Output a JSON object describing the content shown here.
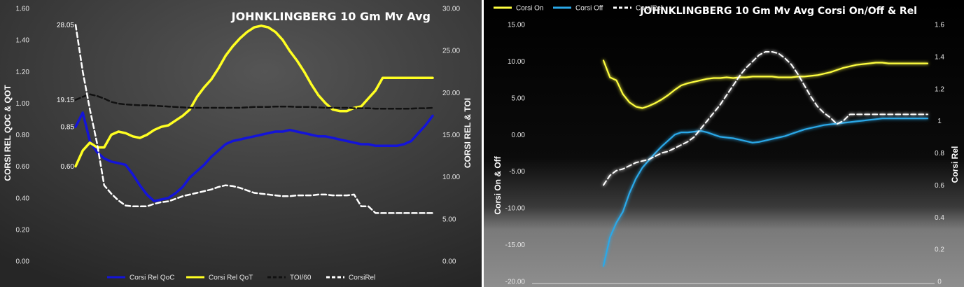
{
  "colors": {
    "qoc": "#1414d8",
    "qot": "#ffff22",
    "toi": "#111111",
    "corsirel": "#ffffff",
    "corsi_on": "#ffff40",
    "corsi_off": "#2aa8e8",
    "corsirel2": "#ffffff"
  },
  "chart_data": [
    {
      "type": "line",
      "title": "JOHNKLINGBERG 10 Gm Mv Avg",
      "ylabel_left": "CORSI REL QOC & QOT",
      "ylabel_right": "CORSI REL & TOI",
      "ylim_left": [
        0,
        1.6
      ],
      "ylim_right": [
        0,
        30
      ],
      "left_ticks": [
        "0.00",
        "0.20",
        "0.40",
        "0.60",
        "0.80",
        "1.00",
        "1.20",
        "1.40",
        "1.60"
      ],
      "right_ticks": [
        "0.00",
        "5.00",
        "10.00",
        "15.00",
        "20.00",
        "25.00",
        "30.00"
      ],
      "grid": false,
      "legend_position": "bottom",
      "data_labels": [
        "28.05",
        "19.15",
        "0.85",
        "0.60"
      ],
      "series": [
        {
          "name": "Corsi Rel QoC",
          "axis": "left",
          "style": "solid",
          "values": [
            0.85,
            0.94,
            0.76,
            0.69,
            0.65,
            0.63,
            0.62,
            0.61,
            0.55,
            0.48,
            0.42,
            0.38,
            0.39,
            0.4,
            0.43,
            0.47,
            0.53,
            0.57,
            0.61,
            0.66,
            0.7,
            0.74,
            0.76,
            0.77,
            0.78,
            0.79,
            0.8,
            0.81,
            0.82,
            0.82,
            0.83,
            0.82,
            0.81,
            0.8,
            0.79,
            0.79,
            0.78,
            0.77,
            0.76,
            0.75,
            0.74,
            0.74,
            0.73,
            0.73,
            0.73,
            0.73,
            0.74,
            0.76,
            0.81,
            0.86,
            0.92
          ]
        },
        {
          "name": "Corsi Rel QoT",
          "axis": "left",
          "style": "solid",
          "values": [
            0.6,
            0.7,
            0.75,
            0.72,
            0.72,
            0.8,
            0.82,
            0.81,
            0.79,
            0.78,
            0.8,
            0.83,
            0.85,
            0.86,
            0.89,
            0.92,
            0.96,
            1.04,
            1.1,
            1.15,
            1.22,
            1.3,
            1.36,
            1.41,
            1.45,
            1.48,
            1.49,
            1.48,
            1.45,
            1.4,
            1.33,
            1.27,
            1.2,
            1.12,
            1.05,
            1.0,
            0.96,
            0.95,
            0.95,
            0.97,
            0.98,
            1.03,
            1.08,
            1.16,
            1.16,
            1.16,
            1.16,
            1.16,
            1.16,
            1.16,
            1.16
          ]
        },
        {
          "name": "TOI/60",
          "axis": "right",
          "style": "dashed",
          "values": [
            19.15,
            19.5,
            19.8,
            19.6,
            19.3,
            18.9,
            18.7,
            18.6,
            18.55,
            18.5,
            18.5,
            18.45,
            18.4,
            18.35,
            18.3,
            18.25,
            18.2,
            18.2,
            18.2,
            18.2,
            18.2,
            18.2,
            18.2,
            18.2,
            18.25,
            18.3,
            18.3,
            18.3,
            18.35,
            18.35,
            18.35,
            18.3,
            18.3,
            18.3,
            18.25,
            18.2,
            18.2,
            18.2,
            18.2,
            18.15,
            18.15,
            18.15,
            18.1,
            18.1,
            18.1,
            18.1,
            18.1,
            18.1,
            18.15,
            18.15,
            18.2
          ]
        },
        {
          "name": "CorsiRel",
          "axis": "right",
          "style": "dashed",
          "values": [
            28.05,
            22.5,
            18.0,
            14.0,
            9.0,
            8.0,
            7.2,
            6.6,
            6.5,
            6.5,
            6.5,
            6.8,
            7.0,
            7.1,
            7.4,
            7.7,
            7.9,
            8.1,
            8.3,
            8.5,
            8.8,
            9.0,
            8.9,
            8.7,
            8.4,
            8.1,
            8.0,
            7.9,
            7.8,
            7.7,
            7.7,
            7.8,
            7.8,
            7.8,
            7.9,
            7.9,
            7.8,
            7.8,
            7.8,
            7.9,
            6.5,
            6.5,
            5.7,
            5.7,
            5.7,
            5.7,
            5.7,
            5.7,
            5.7,
            5.7,
            5.7
          ]
        }
      ]
    },
    {
      "type": "line",
      "title": "JOHNKLINGBERG 10 Gm Mv Avg Corsi On/Off & Rel",
      "ylabel_left": "Corsi On & Off",
      "ylabel_right": "Corsi Rel",
      "ylim_left": [
        -20,
        15
      ],
      "ylim_right": [
        0,
        1.6
      ],
      "left_ticks": [
        "-20.00",
        "-15.00",
        "-10.00",
        "-5.00",
        "0.00",
        "5.00",
        "10.00",
        "15.00"
      ],
      "right_ticks": [
        "0",
        "0.2",
        "0.4",
        "0.6",
        "0.8",
        "1",
        "1.2",
        "1.4",
        "1.6"
      ],
      "grid": false,
      "legend_position": "top-left",
      "series": [
        {
          "name": "Corsi On",
          "axis": "left",
          "style": "solid",
          "values": [
            10.1,
            7.8,
            7.4,
            5.5,
            4.4,
            3.8,
            3.6,
            3.9,
            4.3,
            4.8,
            5.4,
            6.1,
            6.7,
            7.0,
            7.2,
            7.4,
            7.6,
            7.7,
            7.7,
            7.8,
            7.7,
            7.8,
            7.8,
            7.9,
            7.9,
            7.9,
            7.9,
            7.8,
            7.8,
            7.8,
            7.9,
            7.9,
            8.0,
            8.1,
            8.3,
            8.5,
            8.8,
            9.1,
            9.3,
            9.5,
            9.6,
            9.7,
            9.8,
            9.8,
            9.7,
            9.7,
            9.7,
            9.7,
            9.7,
            9.7,
            9.7
          ]
        },
        {
          "name": "Corsi Off",
          "axis": "left",
          "style": "solid",
          "values": [
            -17.9,
            -14.0,
            -12.0,
            -10.5,
            -8.0,
            -6.0,
            -4.5,
            -3.5,
            -2.5,
            -1.6,
            -0.8,
            0.0,
            0.3,
            0.3,
            0.4,
            0.5,
            0.3,
            0.0,
            -0.3,
            -0.4,
            -0.5,
            -0.7,
            -0.9,
            -1.1,
            -1.0,
            -0.8,
            -0.6,
            -0.4,
            -0.2,
            0.1,
            0.4,
            0.7,
            0.9,
            1.1,
            1.3,
            1.4,
            1.5,
            1.6,
            1.7,
            1.8,
            1.9,
            2.0,
            2.1,
            2.2,
            2.2,
            2.2,
            2.2,
            2.2,
            2.2,
            2.2,
            2.2
          ]
        },
        {
          "name": "CorsiRel",
          "axis": "right",
          "style": "dashed",
          "values": [
            0.6,
            0.66,
            0.69,
            0.7,
            0.72,
            0.74,
            0.75,
            0.76,
            0.78,
            0.8,
            0.81,
            0.83,
            0.85,
            0.87,
            0.9,
            0.95,
            1.0,
            1.05,
            1.1,
            1.16,
            1.22,
            1.28,
            1.33,
            1.37,
            1.41,
            1.43,
            1.43,
            1.42,
            1.39,
            1.35,
            1.29,
            1.22,
            1.15,
            1.09,
            1.05,
            1.02,
            0.98,
            1.0,
            1.04,
            1.04,
            1.04,
            1.04,
            1.04,
            1.04,
            1.04,
            1.04,
            1.04,
            1.04,
            1.04,
            1.04,
            1.04
          ]
        }
      ]
    }
  ]
}
